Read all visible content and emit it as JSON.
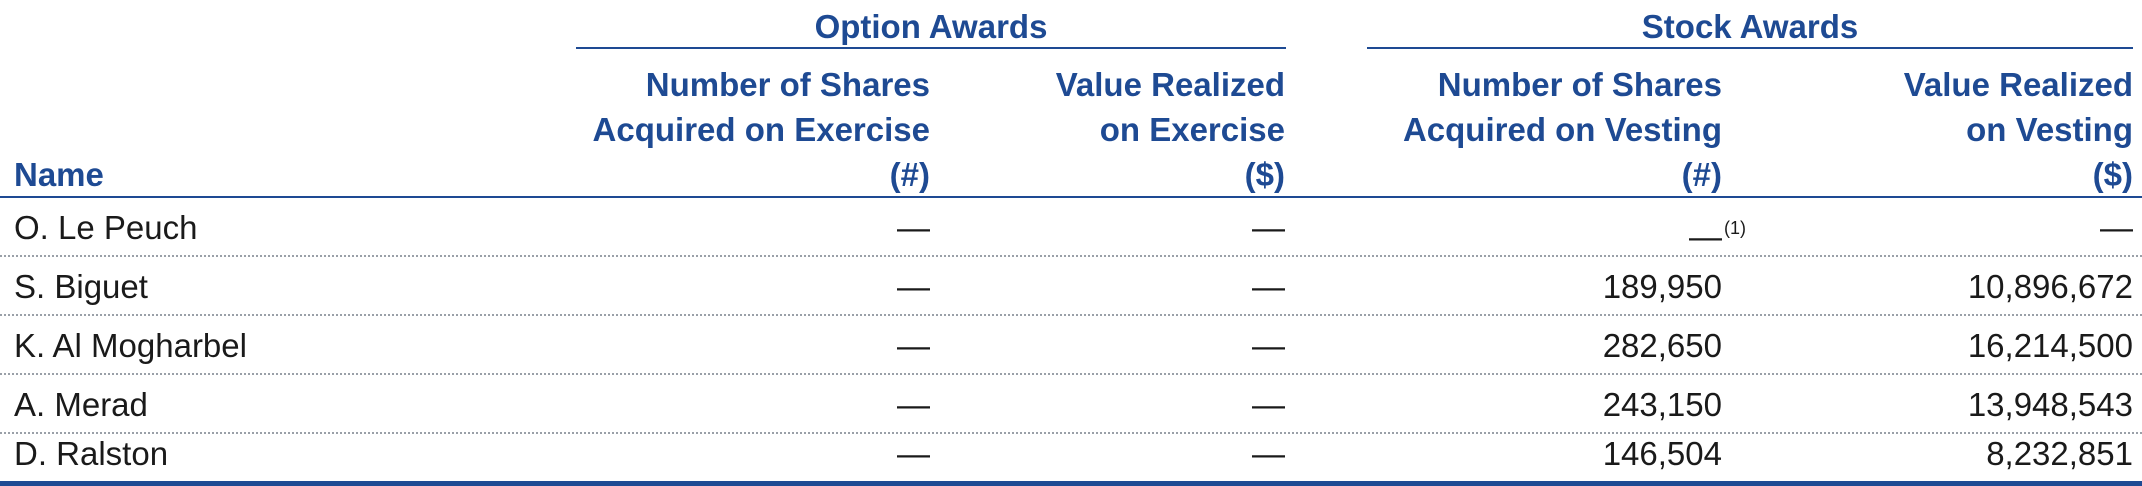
{
  "groups": {
    "option_awards": "Option Awards",
    "stock_awards": "Stock Awards"
  },
  "headers": {
    "name": "Name",
    "col1": [
      "Number of Shares",
      "Acquired on Exercise",
      "(#)"
    ],
    "col2": [
      "Value Realized",
      "on Exercise",
      "($)"
    ],
    "col3": [
      "Number of Shares",
      "Acquired on Vesting",
      "(#)"
    ],
    "col4": [
      "Value Realized",
      "on Vesting",
      "($)"
    ]
  },
  "rows": [
    {
      "name": "O. Le Peuch",
      "c1": "—",
      "c2": "—",
      "c3": "—",
      "c3_note": "(1)",
      "c4": "—"
    },
    {
      "name": "S. Biguet",
      "c1": "—",
      "c2": "—",
      "c3": "189,950",
      "c4": "10,896,672"
    },
    {
      "name": "K. Al Mogharbel",
      "c1": "—",
      "c2": "—",
      "c3": "282,650",
      "c4": "16,214,500"
    },
    {
      "name": "A. Merad",
      "c1": "—",
      "c2": "—",
      "c3": "243,150",
      "c4": "13,948,543"
    },
    {
      "name": "D. Ralston",
      "c1": "—",
      "c2": "—",
      "c3": "146,504",
      "c4": "8,232,851"
    }
  ]
}
